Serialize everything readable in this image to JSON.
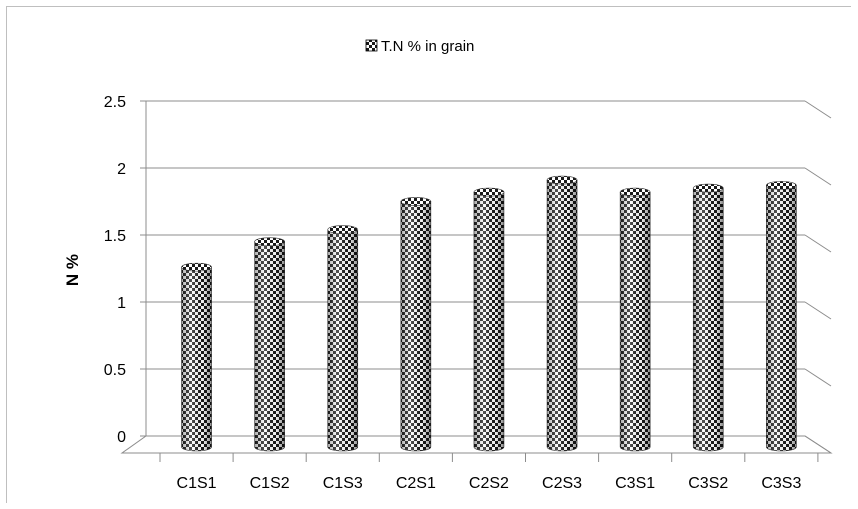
{
  "chart_data": {
    "type": "bar",
    "categories": [
      "C1S1",
      "C1S2",
      "C1S3",
      "C2S1",
      "C2S2",
      "C2S3",
      "C3S1",
      "C3S2",
      "C3S3"
    ],
    "series": [
      {
        "name": "T.N % in grain",
        "values": [
          1.32,
          1.51,
          1.6,
          1.81,
          1.88,
          1.97,
          1.88,
          1.91,
          1.93
        ]
      }
    ],
    "title": "",
    "xlabel": "",
    "ylabel": "N %",
    "ylim": [
      0,
      2.5
    ],
    "yticks": [
      "0",
      "0.5",
      "1",
      "1.5",
      "2",
      "2.5"
    ],
    "grid": true,
    "legend_position": "top",
    "style": "3d-cylinder",
    "pattern": "checkerboard",
    "colors": {
      "dark": "#1a1a1a",
      "light": "#ffffff",
      "grid": "#8c8c8c"
    }
  }
}
